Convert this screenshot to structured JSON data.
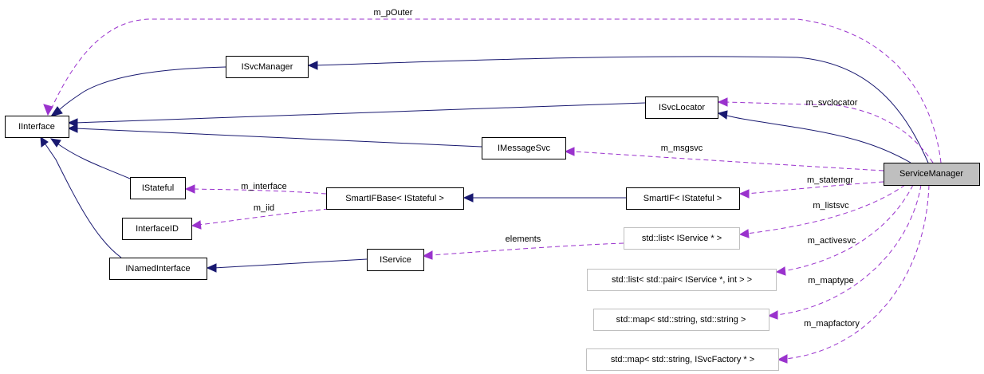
{
  "colors": {
    "inheritance": "#191970",
    "usage": "#9a32cd",
    "focus_fill": "#bfbfbf",
    "undocumented_border": "#bfbfbf"
  },
  "nodes": {
    "iinterface": "IInterface",
    "isvcmanager": "ISvcManager",
    "isvclocator": "ISvcLocator",
    "imessagesvc": "IMessageSvc",
    "servicemanager": "ServiceManager",
    "istateful": "IStateful",
    "smartifbase": "SmartIFBase< IStateful >",
    "smartif": "SmartIF< IStateful >",
    "interfaceid": "InterfaceID",
    "inamedinterface": "INamedInterface",
    "iservice": "IService",
    "list_iservice": "std::list< IService * >",
    "list_pair": "std::list< std::pair< IService *, int > >",
    "map_string": "std::map< std::string, std::string >",
    "map_factory": "std::map< std::string, ISvcFactory * >"
  },
  "edge_labels": {
    "m_pOuter": "m_pOuter",
    "m_svclocator": "m_svclocator",
    "m_msgsvc": "m_msgsvc",
    "m_statemgr": "m_statemgr",
    "m_interface": "m_interface",
    "m_iid": "m_iid",
    "m_listsvc": "m_listsvc",
    "elements": "elements",
    "m_activesvc": "m_activesvc",
    "m_maptype": "m_maptype",
    "m_mapfactory": "m_mapfactory"
  }
}
